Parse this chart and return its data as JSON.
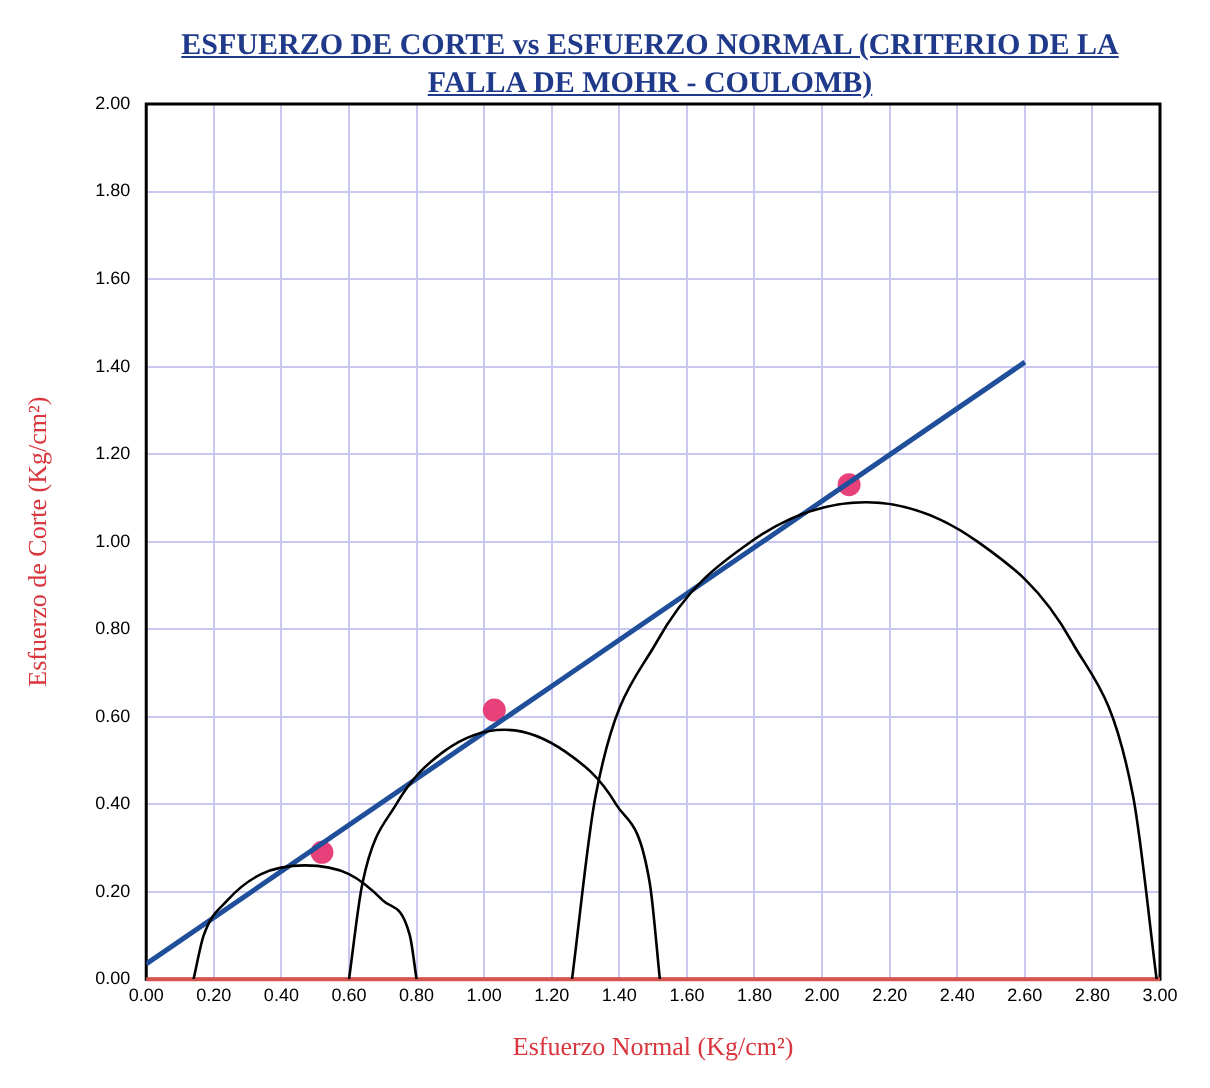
{
  "chart_data": {
    "type": "scatter",
    "title": "ESFUERZO DE CORTE vs ESFUERZO NORMAL   (CRITERIO DE LA FALLA DE MOHR - COULOMB)",
    "xlabel": "Esfuerzo Normal (Kg/cm²)",
    "ylabel": "Esfuerzo de Corte (Kg/cm²)",
    "series": [
      {
        "type": "line",
        "color": "#000000",
        "marker": "none",
        "x": [
          0.14,
          0.17,
          0.24,
          0.34,
          0.47,
          0.6,
          0.7,
          0.78,
          0.8
        ],
        "values": [
          0,
          0.1,
          0.18,
          0.24,
          0.26,
          0.24,
          0.18,
          0.1,
          0
        ]
      },
      {
        "type": "line",
        "color": "#000000",
        "marker": "none",
        "x": [
          0.6,
          0.64,
          0.74,
          0.88,
          1.06,
          1.24,
          1.39,
          1.49,
          1.52
        ],
        "values": [
          0,
          0.22,
          0.4,
          0.52,
          0.57,
          0.52,
          0.4,
          0.22,
          0
        ]
      },
      {
        "type": "line",
        "color": "#000000",
        "marker": "none",
        "x": [
          1.26,
          1.33,
          1.51,
          1.79,
          2.13,
          2.46,
          2.74,
          2.92,
          2.99
        ],
        "values": [
          0,
          0.42,
          0.77,
          1.0,
          1.09,
          1.0,
          0.77,
          0.42,
          0
        ]
      },
      {
        "type": "line",
        "color": "#1f4e9a",
        "marker": "none",
        "x": [
          0,
          2.6
        ],
        "values": [
          0.035,
          1.41
        ]
      },
      {
        "color": "#e8407a",
        "marker": "circle",
        "x": [
          0.52,
          1.03,
          2.08
        ],
        "values": [
          0.29,
          0.615,
          1.13
        ]
      }
    ],
    "xlim": [
      0,
      3
    ],
    "ylim": [
      0,
      2
    ],
    "xticks": [
      {
        "value": 0,
        "label": "0.00"
      },
      {
        "value": 0.2,
        "label": "0.20"
      },
      {
        "value": 0.4,
        "label": "0.40"
      },
      {
        "value": 0.6,
        "label": "0.60"
      },
      {
        "value": 0.8,
        "label": "0.80"
      },
      {
        "value": 1,
        "label": "1.00"
      },
      {
        "value": 1.2,
        "label": "1.20"
      },
      {
        "value": 1.4,
        "label": "1.40"
      },
      {
        "value": 1.6,
        "label": "1.60"
      },
      {
        "value": 1.8,
        "label": "1.80"
      },
      {
        "value": 2,
        "label": "2.00"
      },
      {
        "value": 2.2,
        "label": "2.20"
      },
      {
        "value": 2.4,
        "label": "2.40"
      },
      {
        "value": 2.6,
        "label": "2.60"
      },
      {
        "value": 2.8,
        "label": "2.80"
      },
      {
        "value": 3,
        "label": "3.00"
      }
    ],
    "yticks": [
      {
        "value": 0,
        "label": "0.00"
      },
      {
        "value": 0.2,
        "label": "0.20"
      },
      {
        "value": 0.4,
        "label": "0.40"
      },
      {
        "value": 0.6,
        "label": "0.60"
      },
      {
        "value": 0.8,
        "label": "0.80"
      },
      {
        "value": 1,
        "label": "1.00"
      },
      {
        "value": 1.2,
        "label": "1.20"
      },
      {
        "value": 1.4,
        "label": "1.40"
      },
      {
        "value": 1.6,
        "label": "1.60"
      },
      {
        "value": 1.8,
        "label": "1.80"
      },
      {
        "value": 2,
        "label": "2.00"
      }
    ],
    "grid": true,
    "legend": false
  }
}
